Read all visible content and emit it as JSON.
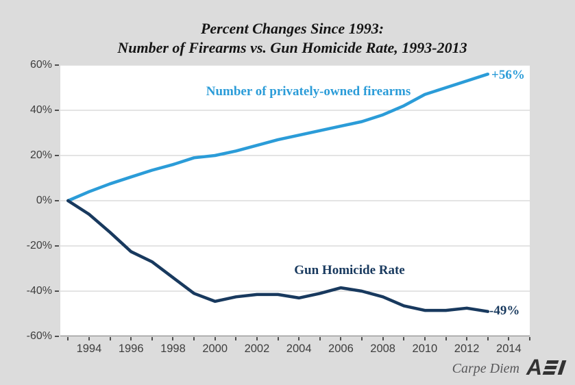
{
  "title": {
    "line1": "Percent Changes Since 1993:",
    "line2": "Number of Firearms vs. Gun Homicide Rate, 1993-2013"
  },
  "footer": {
    "credit": "Carpe Diem",
    "logo": "AEI"
  },
  "colors": {
    "background": "#dcdcdc",
    "plot_background": "#ffffff",
    "gridline": "#c9c9c9",
    "firearms_line": "#2b9cd8",
    "homicide_line": "#18395e",
    "axis_text": "#3e3e3e"
  },
  "chart_data": {
    "type": "line",
    "title": "Percent Changes Since 1993: Number of Firearms vs. Gun Homicide Rate, 1993-2013",
    "x": [
      1993,
      1994,
      1995,
      1996,
      1997,
      1998,
      1999,
      2000,
      2001,
      2002,
      2003,
      2004,
      2005,
      2006,
      2007,
      2008,
      2009,
      2010,
      2011,
      2012,
      2013
    ],
    "series": [
      {
        "name": "Number of privately-owned firearms",
        "color": "#2b9cd8",
        "end_label": "+56%",
        "values": [
          0,
          4,
          7.5,
          10.5,
          13.5,
          16,
          19,
          20,
          22,
          24.5,
          27,
          29,
          31,
          33,
          35,
          38,
          42,
          47,
          50,
          53,
          56
        ]
      },
      {
        "name": "Gun Homicide Rate",
        "color": "#18395e",
        "end_label": "-49%",
        "values": [
          0,
          -6,
          -14,
          -22.5,
          -27,
          -34,
          -41,
          -44.5,
          -42.5,
          -41.5,
          -41.5,
          -43,
          -41,
          -38.5,
          -40,
          -42.5,
          -46.5,
          -48.5,
          -48.5,
          -47.5,
          -49
        ]
      }
    ],
    "xlim": [
      1992.63,
      2015
    ],
    "ylim": [
      -60,
      60
    ],
    "y_ticks": [
      {
        "label": "60%",
        "value": 60
      },
      {
        "label": "40%",
        "value": 40
      },
      {
        "label": "20%",
        "value": 20
      },
      {
        "label": "0%",
        "value": 0
      },
      {
        "label": "-20%",
        "value": -20
      },
      {
        "label": "-40%",
        "value": -40
      },
      {
        "label": "-60%",
        "value": -60
      }
    ],
    "x_labels": [
      {
        "label": "1994",
        "value": 1994
      },
      {
        "label": "1996",
        "value": 1996
      },
      {
        "label": "1998",
        "value": 1998
      },
      {
        "label": "2000",
        "value": 2000
      },
      {
        "label": "2002",
        "value": 2002
      },
      {
        "label": "2004",
        "value": 2004
      },
      {
        "label": "2006",
        "value": 2006
      },
      {
        "label": "2008",
        "value": 2008
      },
      {
        "label": "2010",
        "value": 2010
      },
      {
        "label": "2012",
        "value": 2012
      },
      {
        "label": "2014",
        "value": 2014
      }
    ],
    "x_minor_ticks": [
      1993,
      1994,
      1995,
      1996,
      1997,
      1998,
      1999,
      2000,
      2001,
      2002,
      2003,
      2004,
      2005,
      2006,
      2007,
      2008,
      2009,
      2010,
      2011,
      2012,
      2013,
      2014,
      2015
    ],
    "grid": "horizontal-only",
    "legend": "inline-labels"
  }
}
